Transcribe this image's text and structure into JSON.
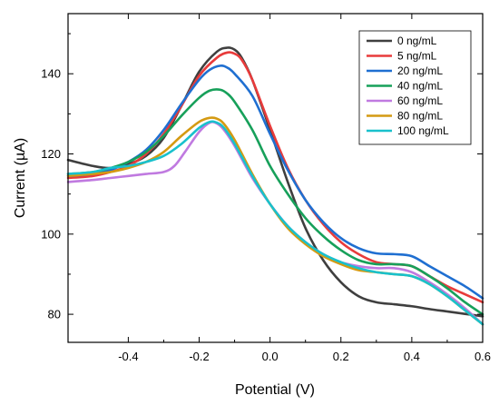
{
  "chart_data": {
    "type": "line",
    "xlabel": "Potential (V)",
    "ylabel": "Current (µA)",
    "xlim": [
      -0.57,
      0.6
    ],
    "ylim": [
      73,
      155
    ],
    "x_ticks": [
      -0.4,
      -0.2,
      0.0,
      0.2,
      0.4,
      0.6
    ],
    "x_tick_labels": [
      "-0.4",
      "-0.2",
      "0.0",
      "0.2",
      "0.4",
      "0.6"
    ],
    "y_ticks": [
      80,
      100,
      120,
      140
    ],
    "y_tick_labels": [
      "80",
      "100",
      "120",
      "140"
    ],
    "grid": false,
    "legend_position": "top-right",
    "series": [
      {
        "name": "0 ng/mL",
        "color": "#3f3f3f",
        "x": [
          -0.57,
          -0.5,
          -0.45,
          -0.4,
          -0.35,
          -0.3,
          -0.25,
          -0.2,
          -0.15,
          -0.12,
          -0.1,
          -0.08,
          -0.05,
          0.0,
          0.05,
          0.1,
          0.15,
          0.2,
          0.25,
          0.3,
          0.35,
          0.4,
          0.45,
          0.5,
          0.55,
          0.6
        ],
        "y": [
          118.5,
          117,
          116.5,
          117.5,
          119.5,
          124,
          132,
          140.5,
          145.5,
          146.5,
          146,
          144,
          138.5,
          126,
          113,
          101.5,
          93.5,
          88,
          84.5,
          83,
          82.5,
          82,
          81.3,
          80.7,
          80.1,
          79.5
        ]
      },
      {
        "name": "5 ng/mL",
        "color": "#e83b3b",
        "x": [
          -0.57,
          -0.5,
          -0.45,
          -0.4,
          -0.35,
          -0.3,
          -0.25,
          -0.2,
          -0.15,
          -0.12,
          -0.1,
          -0.08,
          -0.05,
          0.0,
          0.05,
          0.1,
          0.15,
          0.2,
          0.25,
          0.3,
          0.35,
          0.4,
          0.45,
          0.5,
          0.55,
          0.6
        ],
        "y": [
          114,
          114.5,
          115.5,
          117,
          120,
          125,
          132,
          139.5,
          144,
          145.3,
          145,
          143.5,
          138.5,
          127,
          116.5,
          108.5,
          102.5,
          98,
          95,
          93,
          92.5,
          92,
          89.5,
          87,
          85,
          83
        ]
      },
      {
        "name": "20 ng/mL",
        "color": "#1f6fd1",
        "x": [
          -0.57,
          -0.5,
          -0.45,
          -0.4,
          -0.35,
          -0.3,
          -0.25,
          -0.2,
          -0.17,
          -0.14,
          -0.12,
          -0.1,
          -0.05,
          0.0,
          0.05,
          0.1,
          0.15,
          0.2,
          0.25,
          0.3,
          0.35,
          0.4,
          0.45,
          0.5,
          0.55,
          0.6
        ],
        "y": [
          114.5,
          115,
          116,
          118,
          121,
          126,
          132.5,
          138.5,
          141,
          142,
          141.5,
          140,
          134.5,
          125,
          116,
          108.5,
          103,
          99,
          96.5,
          95.2,
          95,
          94.5,
          92,
          89.5,
          87,
          84
        ]
      },
      {
        "name": "40 ng/mL",
        "color": "#17a05a",
        "x": [
          -0.57,
          -0.5,
          -0.45,
          -0.4,
          -0.35,
          -0.3,
          -0.25,
          -0.2,
          -0.17,
          -0.14,
          -0.12,
          -0.1,
          -0.05,
          0.0,
          0.05,
          0.1,
          0.15,
          0.2,
          0.25,
          0.3,
          0.35,
          0.4,
          0.45,
          0.5,
          0.55,
          0.6
        ],
        "y": [
          115,
          115.5,
          116.5,
          118,
          120.5,
          124.5,
          129.5,
          134,
          135.8,
          136,
          135,
          133,
          126,
          117,
          110,
          104,
          99.5,
          96,
          93.5,
          92.5,
          92.5,
          92,
          89.5,
          86.5,
          83,
          80
        ]
      },
      {
        "name": "60 ng/mL",
        "color": "#c07ae0",
        "x": [
          -0.57,
          -0.5,
          -0.45,
          -0.4,
          -0.35,
          -0.3,
          -0.27,
          -0.24,
          -0.2,
          -0.17,
          -0.15,
          -0.13,
          -0.1,
          -0.05,
          0.0,
          0.05,
          0.1,
          0.15,
          0.2,
          0.25,
          0.3,
          0.35,
          0.4,
          0.45,
          0.5,
          0.55,
          0.6
        ],
        "y": [
          113,
          113.5,
          114,
          114.5,
          115,
          115.5,
          117,
          120.5,
          125.5,
          127.8,
          127.6,
          126,
          122,
          114,
          107.5,
          102,
          98,
          95,
          93,
          92,
          91.5,
          91.5,
          90.5,
          88,
          85,
          81.5,
          77.5
        ]
      },
      {
        "name": "80 ng/mL",
        "color": "#d49a12",
        "x": [
          -0.57,
          -0.5,
          -0.45,
          -0.4,
          -0.35,
          -0.3,
          -0.25,
          -0.2,
          -0.17,
          -0.15,
          -0.13,
          -0.1,
          -0.05,
          0.0,
          0.05,
          0.1,
          0.15,
          0.2,
          0.25,
          0.3,
          0.35,
          0.4,
          0.45,
          0.5,
          0.55,
          0.6
        ],
        "y": [
          114.5,
          115,
          115.5,
          116.5,
          118,
          120.5,
          124.5,
          128,
          129,
          128.8,
          127.5,
          123.5,
          115,
          107.5,
          101.5,
          97.5,
          94.5,
          92.5,
          91,
          90.5,
          90,
          89.5,
          87.5,
          84.5,
          81,
          77.5
        ]
      },
      {
        "name": "100 ng/mL",
        "color": "#19c1cc",
        "x": [
          -0.57,
          -0.5,
          -0.45,
          -0.4,
          -0.35,
          -0.3,
          -0.25,
          -0.2,
          -0.17,
          -0.15,
          -0.13,
          -0.1,
          -0.05,
          0.0,
          0.05,
          0.1,
          0.15,
          0.2,
          0.25,
          0.3,
          0.35,
          0.4,
          0.45,
          0.5,
          0.55,
          0.6
        ],
        "y": [
          115,
          115.5,
          116.5,
          117,
          118,
          119.5,
          122.5,
          126.5,
          128,
          127.8,
          126.5,
          122.5,
          114.5,
          107.5,
          102,
          98,
          95,
          93,
          91.5,
          90.5,
          90,
          89.5,
          87.5,
          84.5,
          81,
          77.5
        ]
      }
    ]
  }
}
